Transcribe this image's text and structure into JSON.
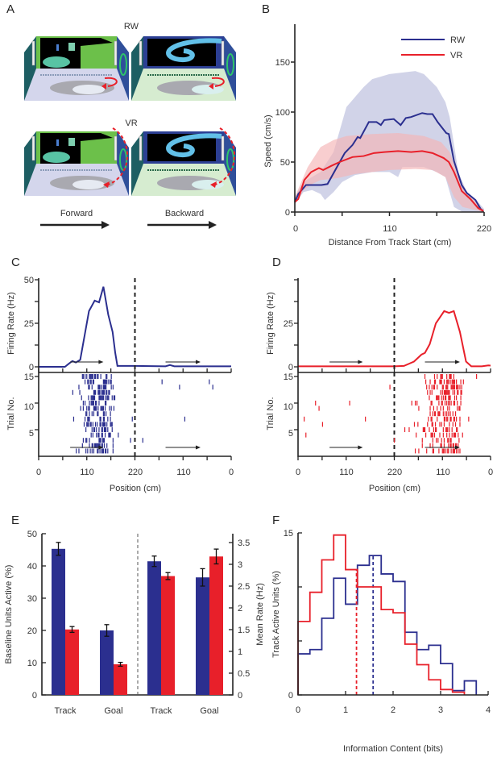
{
  "colors": {
    "rw": "#2b2f8f",
    "vr": "#e8202a",
    "rw_band": "#b8bcdc",
    "vr_band": "#f4b4b6"
  },
  "panel_a": {
    "letter": "A",
    "top_label": "RW",
    "bottom_label": "VR",
    "forward_label": "Forward",
    "backward_label": "Backward"
  },
  "chart_data": [
    {
      "panel": "B",
      "type": "line",
      "xlabel": "Distance From Track Start (cm)",
      "ylabel": "Speed (cm/s)",
      "xlim": [
        0,
        220
      ],
      "ylim": [
        0,
        180
      ],
      "xticks": [
        "0",
        "110",
        "220"
      ],
      "yticks": [
        "0",
        "50",
        "100",
        "150"
      ],
      "legend": {
        "placement": "top-right",
        "entries": [
          "RW",
          "VR"
        ]
      },
      "series": [
        {
          "name": "RW",
          "mean": [
            [
              0,
              10
            ],
            [
              4,
              18
            ],
            [
              13,
              27
            ],
            [
              31,
              27
            ],
            [
              38,
              28
            ],
            [
              58,
              59
            ],
            [
              67,
              67
            ],
            [
              73,
              75
            ],
            [
              76,
              74
            ],
            [
              86,
              90
            ],
            [
              95,
              90
            ],
            [
              100,
              87
            ],
            [
              104,
              92
            ],
            [
              115,
              93
            ],
            [
              123,
              87
            ],
            [
              129,
              94
            ],
            [
              135,
              95
            ],
            [
              148,
              99
            ],
            [
              154,
              98
            ],
            [
              160,
              98
            ],
            [
              166,
              90
            ],
            [
              176,
              79
            ],
            [
              179,
              78
            ],
            [
              185,
              51
            ],
            [
              194,
              27
            ],
            [
              200,
              19
            ],
            [
              210,
              12
            ],
            [
              216,
              3
            ],
            [
              219,
              1
            ]
          ],
          "upper": [
            [
              0,
              15
            ],
            [
              10,
              30
            ],
            [
              30,
              40
            ],
            [
              45,
              60
            ],
            [
              55,
              90
            ],
            [
              60,
              105
            ],
            [
              70,
              115
            ],
            [
              80,
              125
            ],
            [
              90,
              133
            ],
            [
              110,
              138
            ],
            [
              140,
              141
            ],
            [
              150,
              138
            ],
            [
              165,
              125
            ],
            [
              175,
              110
            ],
            [
              180,
              95
            ],
            [
              190,
              40
            ],
            [
              200,
              20
            ],
            [
              215,
              8
            ],
            [
              220,
              3
            ]
          ],
          "lower": [
            [
              0,
              8
            ],
            [
              10,
              20
            ],
            [
              20,
              22
            ],
            [
              30,
              18
            ],
            [
              35,
              12
            ],
            [
              45,
              20
            ],
            [
              55,
              30
            ],
            [
              70,
              37
            ],
            [
              90,
              40
            ],
            [
              110,
              40
            ],
            [
              120,
              35
            ],
            [
              125,
              45
            ],
            [
              150,
              45
            ],
            [
              165,
              40
            ],
            [
              175,
              35
            ],
            [
              185,
              5
            ],
            [
              195,
              0
            ],
            [
              220,
              0
            ]
          ]
        },
        {
          "name": "VR",
          "mean": [
            [
              0,
              10
            ],
            [
              4,
              13
            ],
            [
              11,
              32
            ],
            [
              19,
              40
            ],
            [
              28,
              44
            ],
            [
              33,
              42
            ],
            [
              42,
              46
            ],
            [
              52,
              50
            ],
            [
              67,
              55
            ],
            [
              80,
              56
            ],
            [
              92,
              59
            ],
            [
              104,
              60
            ],
            [
              120,
              61
            ],
            [
              135,
              60
            ],
            [
              148,
              61
            ],
            [
              160,
              59
            ],
            [
              173,
              54
            ],
            [
              179,
              50
            ],
            [
              185,
              40
            ],
            [
              194,
              21
            ],
            [
              204,
              13
            ],
            [
              213,
              4
            ],
            [
              219,
              1
            ]
          ],
          "upper": [
            [
              0,
              15
            ],
            [
              15,
              45
            ],
            [
              30,
              65
            ],
            [
              45,
              72
            ],
            [
              60,
              76
            ],
            [
              90,
              78
            ],
            [
              120,
              79
            ],
            [
              150,
              76
            ],
            [
              170,
              70
            ],
            [
              180,
              60
            ],
            [
              190,
              35
            ],
            [
              200,
              20
            ],
            [
              215,
              5
            ],
            [
              220,
              2
            ]
          ],
          "lower": [
            [
              0,
              8
            ],
            [
              10,
              22
            ],
            [
              20,
              28
            ],
            [
              30,
              32
            ],
            [
              50,
              34
            ],
            [
              70,
              38
            ],
            [
              90,
              40
            ],
            [
              110,
              42
            ],
            [
              140,
              43
            ],
            [
              160,
              42
            ],
            [
              175,
              35
            ],
            [
              185,
              15
            ],
            [
              195,
              5
            ],
            [
              220,
              0
            ]
          ]
        }
      ]
    },
    {
      "panel": "C",
      "type": "line",
      "condition": "RW",
      "ylabel_rate": "Firing Rate (Hz)",
      "ylabel_raster": "Trial No.",
      "xlabel": "Position (cm)",
      "xticks": [
        "0",
        "110",
        "220",
        "110",
        "0"
      ],
      "yticks_rate": [
        "0",
        "25",
        "50"
      ],
      "yticks_raster": [
        "5",
        "10",
        "15"
      ],
      "ylim_rate": [
        0,
        50
      ],
      "trials": 15,
      "rate": [
        [
          0,
          0
        ],
        [
          60,
          0
        ],
        [
          70,
          2
        ],
        [
          77,
          3.3
        ],
        [
          85,
          2.5
        ],
        [
          95,
          4
        ],
        [
          105,
          18
        ],
        [
          115,
          32
        ],
        [
          128,
          38
        ],
        [
          138,
          37
        ],
        [
          148,
          46
        ],
        [
          159,
          30
        ],
        [
          169,
          20
        ],
        [
          175,
          8
        ],
        [
          180,
          0.5
        ],
        [
          200,
          0.5
        ],
        [
          220,
          0.5
        ],
        [
          290,
          0.3
        ],
        [
          300,
          1
        ],
        [
          310,
          0.3
        ],
        [
          440,
          0.3
        ]
      ]
    },
    {
      "panel": "D",
      "type": "line",
      "condition": "VR",
      "ylabel_rate": "Firing Rate (Hz)",
      "ylabel_raster": "Trial No.",
      "xlabel": "Position (cm)",
      "xticks": [
        "0",
        "110",
        "220",
        "110",
        "0"
      ],
      "yticks_rate": [
        "0",
        "25"
      ],
      "yticks_raster": [
        "5",
        "10",
        "15"
      ],
      "ylim_rate": [
        0,
        50
      ],
      "trials": 15,
      "rate": [
        [
          0,
          0.3
        ],
        [
          220,
          0.3
        ],
        [
          242,
          0.5
        ],
        [
          265,
          3
        ],
        [
          282,
          7
        ],
        [
          290,
          8
        ],
        [
          301,
          13
        ],
        [
          315,
          25
        ],
        [
          334,
          32
        ],
        [
          345,
          31
        ],
        [
          356,
          32
        ],
        [
          370,
          20
        ],
        [
          384,
          3
        ],
        [
          396,
          0.3
        ],
        [
          420,
          0.3
        ],
        [
          435,
          0.8
        ],
        [
          440,
          0.7
        ]
      ]
    },
    {
      "panel": "E",
      "type": "bar",
      "ylabel_left": "Baseline Units Active (%)",
      "ylabel_right": "Mean Rate (Hz)",
      "ylim_left": [
        0,
        50
      ],
      "ylim_right": [
        0,
        3.5
      ],
      "yticks_left": [
        "0",
        "10",
        "20",
        "30",
        "40",
        "50"
      ],
      "yticks_right": [
        "0",
        "0.5",
        "1",
        "1.5",
        "2",
        "2.5",
        "3",
        "3.5"
      ],
      "categories": [
        "Track",
        "Goal",
        "Track",
        "Goal"
      ],
      "axis_for_category": [
        "left",
        "left",
        "right",
        "right"
      ],
      "series": [
        {
          "name": "RW",
          "values": [
            45.3,
            20.0,
            3.07,
            2.7
          ],
          "errors": [
            2.0,
            1.8,
            0.12,
            0.2
          ]
        },
        {
          "name": "VR",
          "values": [
            20.3,
            9.5,
            2.73,
            3.18
          ],
          "errors": [
            0.9,
            0.6,
            0.08,
            0.17
          ]
        }
      ]
    },
    {
      "panel": "F",
      "type": "line",
      "subtype": "step-histogram",
      "xlabel": "Information Content (bits)",
      "ylabel": "Track Active Units (%)",
      "xlim": [
        0,
        4
      ],
      "ylim": [
        0,
        15
      ],
      "xticks": [
        "0",
        "1",
        "2",
        "3",
        "4"
      ],
      "yticks": [
        "0",
        "15"
      ],
      "bin_width": 0.25,
      "series": [
        {
          "name": "RW",
          "bin_start": 0,
          "values": [
            3.8,
            4.2,
            7.1,
            10.8,
            8.4,
            12.0,
            12.9,
            11.2,
            10.5,
            5.8,
            4.2,
            4.6,
            2.9,
            0.4,
            1.3
          ],
          "median": 1.58
        },
        {
          "name": "VR",
          "bin_start": 0,
          "values": [
            6.8,
            9.5,
            12.5,
            14.8,
            11.6,
            10.0,
            10.0,
            7.9,
            7.6,
            4.7,
            2.8,
            1.4,
            0.5,
            0.25
          ],
          "median": 1.23
        }
      ]
    }
  ]
}
